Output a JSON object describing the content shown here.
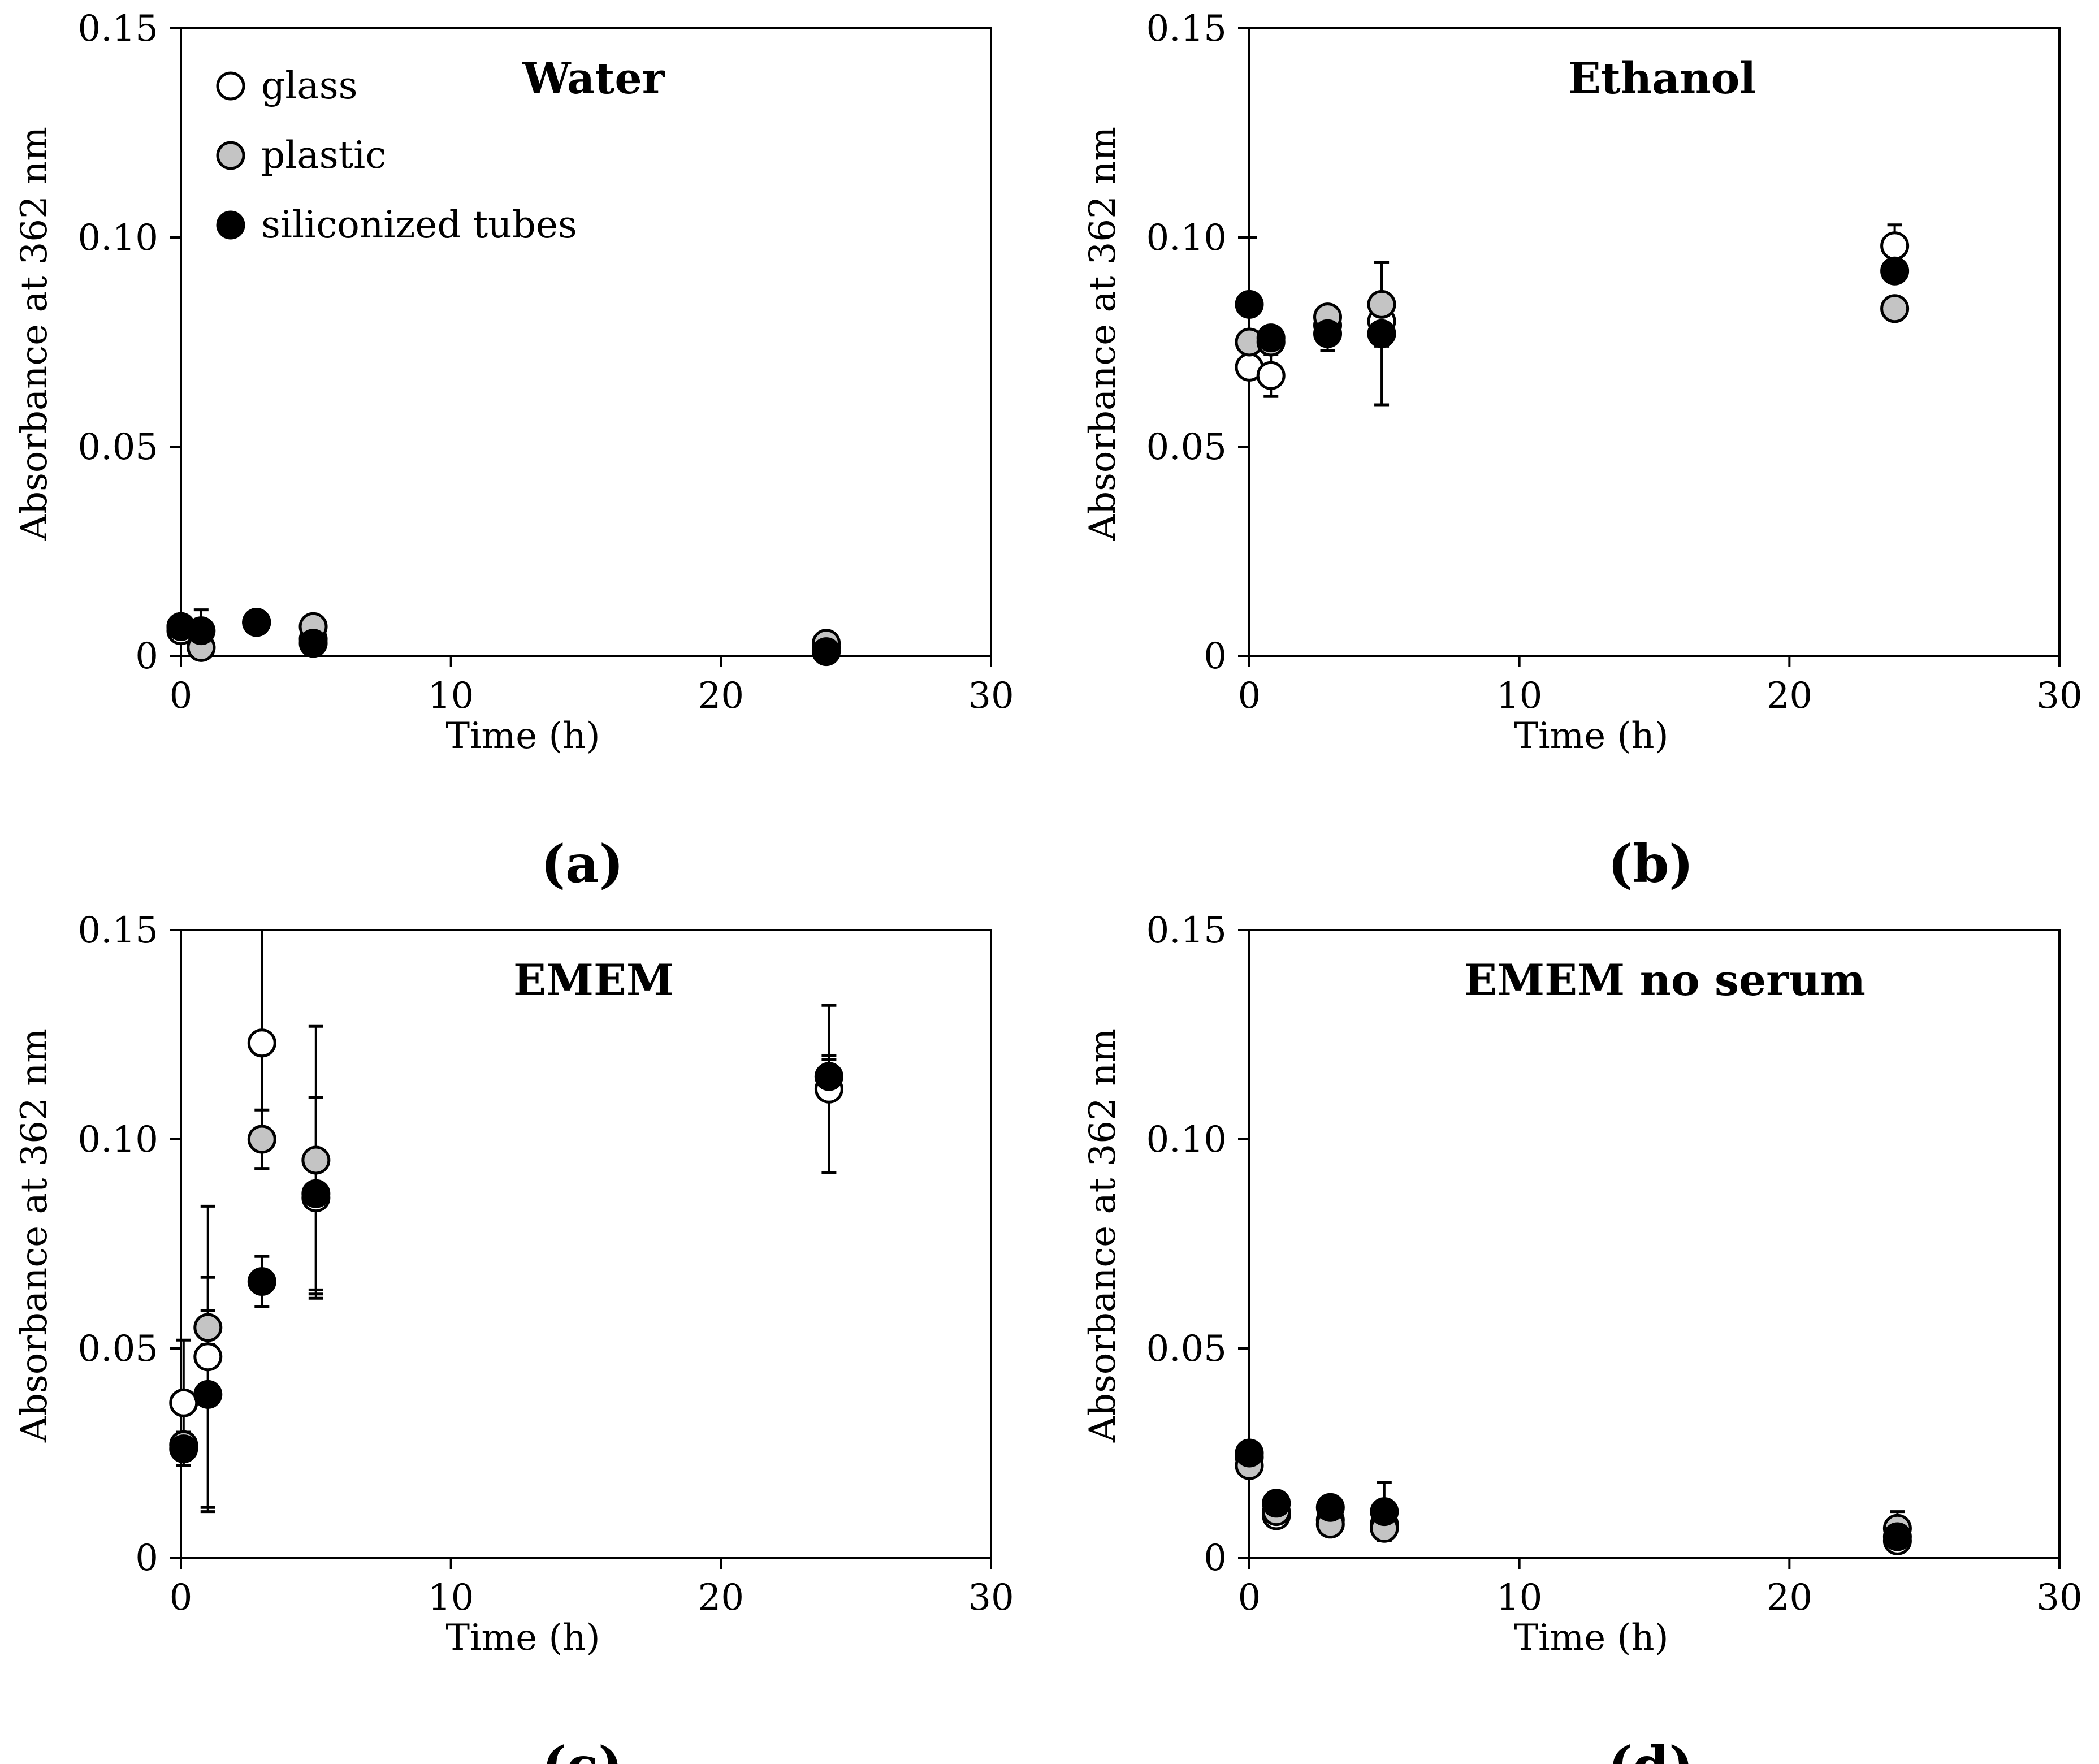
{
  "colors": {
    "glass": "#ffffff",
    "plastic": "#c4c4c4",
    "siliconized": "#000000",
    "stroke": "#000000"
  },
  "legend": [
    {
      "series": "glass",
      "label": "glass"
    },
    {
      "series": "plastic",
      "label": "plastic"
    },
    {
      "series": "siliconized",
      "label": "siliconized tubes"
    }
  ],
  "chart_data": [
    {
      "type": "scatter",
      "panel": "(a)",
      "title": "Water",
      "xlabel": "Time (h)",
      "ylabel": "Absorbance at 362 nm",
      "xlim": [
        0,
        30
      ],
      "ylim": [
        0,
        0.15
      ],
      "xticks": [
        "0",
        "10",
        "20",
        "30"
      ],
      "yticks": [
        "0",
        "0.05",
        "0.10",
        "0.15"
      ],
      "legend_placement": "top-left",
      "series": [
        {
          "name": "glass",
          "key": "glass",
          "x": [
            0,
            0.75,
            2.8,
            4.9,
            23.9
          ],
          "y": [
            0.006,
            0.002,
            0.008,
            0.004,
            0.002
          ],
          "err": [
            0,
            0,
            0,
            0,
            0
          ]
        },
        {
          "name": "plastic",
          "key": "plastic",
          "x": [
            0,
            0.75,
            2.8,
            4.9,
            23.9
          ],
          "y": [
            0.007,
            0.002,
            0.008,
            0.007,
            0.003
          ],
          "err": [
            0,
            0,
            0,
            0,
            0
          ]
        },
        {
          "name": "siliconized tubes",
          "key": "siliconized",
          "x": [
            0,
            0.75,
            2.8,
            4.9,
            23.9
          ],
          "y": [
            0.007,
            0.006,
            0.008,
            0.003,
            0.001
          ],
          "err": [
            0,
            0.005,
            0,
            0,
            0
          ]
        }
      ]
    },
    {
      "type": "scatter",
      "panel": "(b)",
      "title": "Ethanol",
      "xlabel": "Time (h)",
      "ylabel": "Absorbance at 362 nm",
      "xlim": [
        0,
        30
      ],
      "ylim": [
        0,
        0.15
      ],
      "xticks": [
        "0",
        "10",
        "20",
        "30"
      ],
      "yticks": [
        "0",
        "0.05",
        "0.10",
        "0.15"
      ],
      "series": [
        {
          "name": "glass",
          "key": "glass",
          "x": [
            0,
            0.8,
            2.9,
            4.9,
            23.9
          ],
          "y": [
            0.069,
            0.067,
            0.079,
            0.08,
            0.098
          ],
          "err": [
            0,
            0.005,
            0,
            0,
            0.005
          ]
        },
        {
          "name": "plastic",
          "key": "plastic",
          "x": [
            0,
            0.8,
            2.9,
            4.9,
            23.9
          ],
          "y": [
            0.075,
            0.075,
            0.081,
            0.084,
            0.083
          ],
          "err": [
            0,
            0,
            0,
            0.01,
            0
          ]
        },
        {
          "name": "siliconized tubes",
          "key": "siliconized",
          "x": [
            0,
            0.8,
            2.9,
            4.9,
            23.9
          ],
          "y": [
            0.084,
            0.076,
            0.077,
            0.077,
            0.092
          ],
          "err": [
            0.016,
            0,
            0.004,
            0.017,
            0
          ]
        }
      ]
    },
    {
      "type": "scatter",
      "panel": "(c)",
      "title": "EMEM",
      "xlabel": "Time (h)",
      "ylabel": "Absorbance at 362 nm",
      "xlim": [
        0,
        30
      ],
      "ylim": [
        0,
        0.15
      ],
      "xticks": [
        "0",
        "10",
        "20",
        "30"
      ],
      "yticks": [
        "0",
        "0.05",
        "0.10",
        "0.15"
      ],
      "series": [
        {
          "name": "glass",
          "key": "glass",
          "x": [
            0.1,
            1,
            3,
            5,
            24
          ],
          "y": [
            0.037,
            0.048,
            0.123,
            0.086,
            0.112
          ],
          "err": [
            0.015,
            0.036,
            0.03,
            0.024,
            0.02
          ]
        },
        {
          "name": "plastic",
          "key": "plastic",
          "x": [
            0.1,
            1,
            3,
            5,
            24
          ],
          "y": [
            0.027,
            0.055,
            0.1,
            0.095,
            0.115
          ],
          "err": [
            0,
            0.004,
            0.007,
            0.032,
            0.005
          ]
        },
        {
          "name": "siliconized tubes",
          "key": "siliconized",
          "x": [
            0.1,
            1,
            3,
            5,
            24
          ],
          "y": [
            0.026,
            0.039,
            0.066,
            0.087,
            0.115
          ],
          "err": [
            0.004,
            0.028,
            0.006,
            0.023,
            0.004
          ]
        }
      ]
    },
    {
      "type": "scatter",
      "panel": "(d)",
      "title": "EMEM no serum",
      "xlabel": "Time (h)",
      "ylabel": "Absorbance at 362 nm",
      "xlim": [
        0,
        30
      ],
      "ylim": [
        0,
        0.15
      ],
      "xticks": [
        "0",
        "10",
        "20",
        "30"
      ],
      "yticks": [
        "0",
        "0.05",
        "0.10",
        "0.15"
      ],
      "series": [
        {
          "name": "glass",
          "key": "glass",
          "x": [
            0,
            1,
            3,
            5,
            24
          ],
          "y": [
            0.024,
            0.01,
            0.009,
            0.008,
            0.004
          ],
          "err": [
            0,
            0,
            0,
            0,
            0
          ]
        },
        {
          "name": "plastic",
          "key": "plastic",
          "x": [
            0,
            1,
            3,
            5,
            24
          ],
          "y": [
            0.022,
            0.011,
            0.008,
            0.007,
            0.007
          ],
          "err": [
            0,
            0,
            0,
            0,
            0.004
          ]
        },
        {
          "name": "siliconized tubes",
          "key": "siliconized",
          "x": [
            0,
            1,
            3,
            5,
            24
          ],
          "y": [
            0.025,
            0.013,
            0.012,
            0.011,
            0.005
          ],
          "err": [
            0,
            0,
            0,
            0.007,
            0
          ]
        }
      ]
    }
  ]
}
